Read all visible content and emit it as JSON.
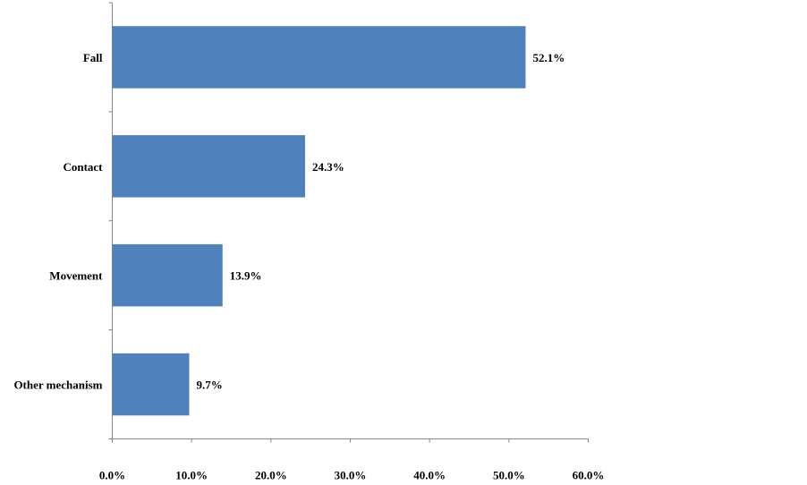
{
  "chart_data": {
    "type": "bar",
    "orientation": "horizontal",
    "categories": [
      "Fall",
      "Contact",
      "Movement",
      "Other mechanism"
    ],
    "values": [
      52.1,
      24.3,
      13.9,
      9.7
    ],
    "value_labels": [
      "52.1%",
      "24.3%",
      "13.9%",
      "9.7%"
    ],
    "color": "#4f81bd",
    "xlim": [
      0,
      60
    ],
    "xticks": [
      {
        "value": 0,
        "label": "0.0%"
      },
      {
        "value": 10,
        "label": "10.0%"
      },
      {
        "value": 20,
        "label": "20.0%"
      },
      {
        "value": 30,
        "label": "30.0%"
      },
      {
        "value": 40,
        "label": "40.0%"
      },
      {
        "value": 50,
        "label": "50.0%"
      },
      {
        "value": 60,
        "label": "60.0%"
      }
    ],
    "grid": false
  }
}
